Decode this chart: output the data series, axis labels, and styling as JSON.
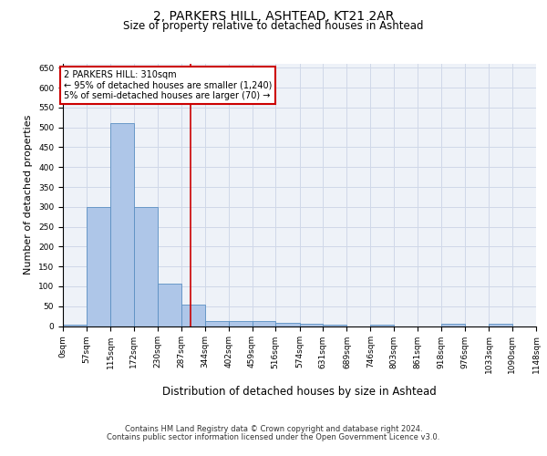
{
  "title": "2, PARKERS HILL, ASHTEAD, KT21 2AR",
  "subtitle": "Size of property relative to detached houses in Ashtead",
  "xlabel": "Distribution of detached houses by size in Ashtead",
  "ylabel": "Number of detached properties",
  "bin_edges": [
    0,
    57,
    115,
    172,
    230,
    287,
    344,
    402,
    459,
    516,
    574,
    631,
    689,
    746,
    803,
    861,
    918,
    976,
    1033,
    1090,
    1148
  ],
  "bar_heights": [
    3,
    300,
    510,
    300,
    107,
    55,
    13,
    13,
    13,
    8,
    5,
    3,
    0,
    3,
    0,
    0,
    5,
    0,
    5,
    0
  ],
  "bar_color": "#aec6e8",
  "bar_edge_color": "#5a8fc2",
  "property_size": 310,
  "vline_color": "#cc0000",
  "annotation_line1": "2 PARKERS HILL: 310sqm",
  "annotation_line2": "← 95% of detached houses are smaller (1,240)",
  "annotation_line3": "5% of semi-detached houses are larger (70) →",
  "annotation_box_color": "#ffffff",
  "annotation_box_edgecolor": "#cc0000",
  "ylim": [
    0,
    660
  ],
  "yticks": [
    0,
    50,
    100,
    150,
    200,
    250,
    300,
    350,
    400,
    450,
    500,
    550,
    600,
    650
  ],
  "grid_color": "#d0d8e8",
  "bg_color": "#eef2f8",
  "footer_line1": "Contains HM Land Registry data © Crown copyright and database right 2024.",
  "footer_line2": "Contains public sector information licensed under the Open Government Licence v3.0.",
  "title_fontsize": 10,
  "subtitle_fontsize": 8.5,
  "xlabel_fontsize": 8.5,
  "ylabel_fontsize": 8,
  "tick_fontsize": 6.5,
  "annotation_fontsize": 7,
  "footer_fontsize": 6
}
